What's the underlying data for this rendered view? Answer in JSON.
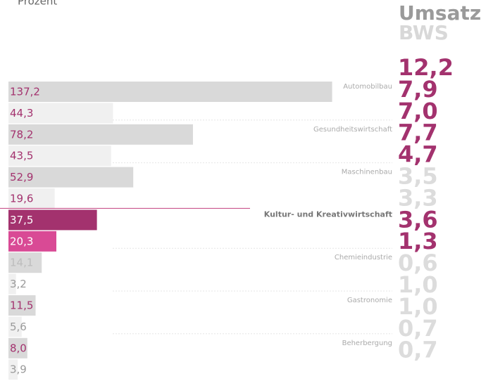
{
  "chart_data": {
    "type": "bar",
    "orientation": "horizontal",
    "title": "Prozent",
    "categories": [
      "Automobilbau",
      "Gesundheitswirtschaft",
      "Maschinenbau",
      "Kultur- und Kreativwirtschaft",
      "Chemieindustrie",
      "Gastronomie",
      "Beherbergung"
    ],
    "highlight": 3,
    "xlim": [
      0,
      140
    ],
    "series": [
      {
        "name": "Umsatz",
        "header_color": "#9a9a9a",
        "values": [
          137.2,
          78.2,
          52.9,
          37.5,
          14.1,
          11.5,
          8.0
        ],
        "value_labels": [
          "137,2",
          "78,2",
          "52,9",
          "37,5",
          "14,1",
          "11,5",
          "8,0"
        ],
        "colors": [
          "#d9d9d9",
          "#d9d9d9",
          "#d9d9d9",
          "#a3326e",
          "#d9d9d9",
          "#d9d9d9",
          "#d9d9d9"
        ],
        "label_colors": [
          "#a3326e",
          "#a3326e",
          "#a3326e",
          "#ffffff",
          "#bdbdbd",
          "#a3326e",
          "#a3326e"
        ],
        "percent_values": [
          12.2,
          7.0,
          4.7,
          3.3,
          1.3,
          1.0,
          0.7
        ],
        "percent_labels": [
          "12,2",
          "7,0",
          "4,7",
          "3,3",
          "1,3",
          "1,0",
          "0,7"
        ],
        "percent_colors": [
          "#a3326e",
          "#a3326e",
          "#a3326e",
          "#dcdcdc",
          "#a3326e",
          "#dcdcdc",
          "#dcdcdc"
        ]
      },
      {
        "name": "BWS",
        "header_color": "#d8d8d8",
        "values": [
          44.3,
          43.5,
          19.6,
          20.3,
          3.2,
          5.6,
          3.9
        ],
        "value_labels": [
          "44,3",
          "43,5",
          "19,6",
          "20,3",
          "3,2",
          "5,6",
          "3,9"
        ],
        "colors": [
          "#f0f0f0",
          "#f0f0f0",
          "#f0f0f0",
          "#d94a95",
          "#f0f0f0",
          "#f0f0f0",
          "#f0f0f0"
        ],
        "label_colors": [
          "#a3326e",
          "#a3326e",
          "#a3326e",
          "#ffffff",
          "#9a9a9a",
          "#9a9a9a",
          "#9a9a9a"
        ],
        "percent_values": [
          7.9,
          7.7,
          3.5,
          3.6,
          0.6,
          1.0,
          0.7
        ],
        "percent_labels": [
          "7,9",
          "7,7",
          "3,5",
          "3,6",
          "0,6",
          "1,0",
          "0,7"
        ],
        "percent_colors": [
          "#a3326e",
          "#a3326e",
          "#dcdcdc",
          "#a3326e",
          "#dcdcdc",
          "#dcdcdc",
          "#dcdcdc"
        ]
      }
    ]
  }
}
